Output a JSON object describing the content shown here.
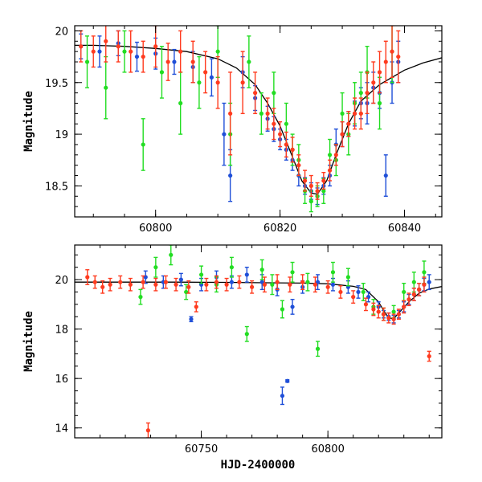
{
  "chart_data": [
    {
      "type": "scatter",
      "panel": "top",
      "ylabel": "Magnitude",
      "xlim": [
        60787,
        60846
      ],
      "ylim": [
        20.05,
        18.2
      ],
      "y_inverted": true,
      "xticks": [
        60800,
        60820,
        60840
      ],
      "xtick_labels": [
        "60800",
        "60820",
        "60840"
      ],
      "yticks": [
        18.5,
        19,
        19.5,
        20
      ],
      "ytick_labels": [
        "18.5",
        "19",
        "19.5",
        "20"
      ],
      "model_curve": {
        "x": [
          60787,
          60790,
          60795,
          60800,
          60805,
          60810,
          60813,
          60816,
          60818,
          60820,
          60822,
          60823.5,
          60825,
          60826,
          60827.5,
          60829,
          60831,
          60833,
          60836,
          60840,
          60843,
          60846
        ],
        "y": [
          19.86,
          19.86,
          19.85,
          19.83,
          19.8,
          19.73,
          19.64,
          19.48,
          19.3,
          19.08,
          18.78,
          18.55,
          18.43,
          18.42,
          18.55,
          18.8,
          19.1,
          19.32,
          19.48,
          19.62,
          19.69,
          19.74
        ]
      },
      "series": [
        {
          "color": "#1f4fd8",
          "x": [
            60788,
            60791,
            60794,
            60797,
            60800,
            60803,
            60806,
            60809,
            60811,
            60812,
            60814,
            60816,
            60818,
            60819,
            60820,
            60821,
            60822,
            60823,
            60824,
            60825,
            60826,
            60827,
            60828,
            60829,
            60830,
            60831,
            60832,
            60833,
            60834,
            60835,
            60836,
            60837,
            60838,
            60839
          ],
          "y": [
            19.85,
            19.8,
            19.88,
            19.75,
            19.78,
            19.7,
            19.65,
            19.55,
            19.0,
            18.6,
            19.6,
            19.35,
            19.15,
            19.05,
            18.95,
            18.85,
            18.75,
            18.6,
            18.5,
            18.45,
            18.4,
            18.5,
            18.6,
            18.9,
            19.0,
            19.1,
            19.2,
            19.3,
            19.3,
            19.45,
            19.4,
            18.6,
            19.5,
            19.7
          ],
          "err": [
            0.12,
            0.15,
            0.12,
            0.14,
            0.15,
            0.12,
            0.15,
            0.18,
            0.3,
            0.25,
            0.15,
            0.12,
            0.12,
            0.12,
            0.1,
            0.1,
            0.1,
            0.1,
            0.08,
            0.08,
            0.08,
            0.08,
            0.1,
            0.15,
            0.12,
            0.12,
            0.12,
            0.15,
            0.2,
            0.15,
            0.15,
            0.2,
            0.2,
            0.2
          ]
        },
        {
          "color": "#22dd22",
          "x": [
            60789,
            60792,
            60795,
            60798,
            60801,
            60804,
            60807,
            60810,
            60812,
            60815,
            60817,
            60819,
            60821,
            60822,
            60823,
            60824,
            60825,
            60826,
            60827,
            60828,
            60829,
            60830,
            60831,
            60832,
            60833,
            60834,
            60836,
            60838
          ],
          "y": [
            19.7,
            19.45,
            19.8,
            18.9,
            19.6,
            19.3,
            19.5,
            19.8,
            19.0,
            19.7,
            19.2,
            19.4,
            19.1,
            18.85,
            18.75,
            18.45,
            18.35,
            18.4,
            18.45,
            18.8,
            18.75,
            19.2,
            19.0,
            19.3,
            19.4,
            19.6,
            19.3,
            19.8
          ],
          "err": [
            0.25,
            0.3,
            0.2,
            0.25,
            0.25,
            0.3,
            0.25,
            0.25,
            0.3,
            0.25,
            0.2,
            0.2,
            0.2,
            0.15,
            0.15,
            0.12,
            0.1,
            0.1,
            0.12,
            0.15,
            0.15,
            0.2,
            0.2,
            0.2,
            0.2,
            0.25,
            0.25,
            0.3
          ]
        },
        {
          "color": "#ff3b1f",
          "x": [
            60788,
            60790,
            60792,
            60794,
            60796,
            60798,
            60800,
            60802,
            60804,
            60806,
            60808,
            60810,
            60812,
            60814,
            60816,
            60818,
            60819,
            60820,
            60821,
            60822,
            60823,
            60824,
            60825,
            60826,
            60827,
            60828,
            60829,
            60830,
            60831,
            60832,
            60833,
            60834,
            60835,
            60836,
            60837,
            60838,
            60839
          ],
          "y": [
            19.85,
            19.8,
            19.9,
            19.85,
            19.8,
            19.75,
            19.85,
            19.7,
            19.8,
            19.7,
            19.6,
            19.5,
            19.2,
            19.5,
            19.4,
            19.2,
            19.1,
            19.0,
            18.9,
            18.85,
            18.7,
            18.55,
            18.5,
            18.45,
            18.55,
            18.65,
            18.8,
            19.0,
            19.1,
            19.2,
            19.2,
            19.4,
            19.5,
            19.6,
            19.7,
            19.8,
            19.75
          ],
          "err": [
            0.15,
            0.15,
            0.2,
            0.15,
            0.2,
            0.15,
            0.2,
            0.18,
            0.2,
            0.2,
            0.2,
            0.25,
            0.4,
            0.3,
            0.2,
            0.15,
            0.15,
            0.12,
            0.12,
            0.12,
            0.1,
            0.1,
            0.1,
            0.08,
            0.08,
            0.1,
            0.1,
            0.12,
            0.12,
            0.15,
            0.15,
            0.2,
            0.2,
            0.2,
            0.2,
            0.25,
            0.25
          ]
        }
      ]
    },
    {
      "type": "scatter",
      "panel": "bottom",
      "ylabel": "Magnitude",
      "xlabel": "HJD-2400000",
      "xlim": [
        60700,
        60845
      ],
      "ylim": [
        21.4,
        13.6
      ],
      "y_inverted": true,
      "xticks": [
        60750,
        60800
      ],
      "xtick_labels": [
        "60750",
        "60800"
      ],
      "yticks": [
        14,
        16,
        18,
        20
      ],
      "ytick_labels": [
        "14",
        "16",
        "18",
        "20"
      ],
      "model_curve": {
        "x": [
          60700,
          60720,
          60740,
          60760,
          60780,
          60790,
          60800,
          60810,
          60815,
          60820,
          60822,
          60824,
          60826,
          60828,
          60832,
          60836,
          60840,
          60845
        ],
        "y": [
          19.9,
          19.9,
          19.9,
          19.89,
          19.87,
          19.86,
          19.83,
          19.73,
          19.6,
          19.1,
          18.75,
          18.45,
          18.42,
          18.65,
          19.1,
          19.45,
          19.62,
          19.72
        ]
      },
      "series": [
        {
          "color": "#1f4fd8",
          "x": [
            60728,
            60735,
            60742,
            60746,
            60750,
            60756,
            60762,
            60768,
            60774,
            60780,
            60782,
            60784,
            60786,
            60790,
            60796,
            60802,
            60808,
            60812,
            60816,
            60820,
            60822,
            60824,
            60826,
            60828,
            60830,
            60832,
            60834,
            60836,
            60838,
            60840
          ],
          "y": [
            20.1,
            19.9,
            20.0,
            18.4,
            19.8,
            20.1,
            19.9,
            20.2,
            19.9,
            19.6,
            15.3,
            15.9,
            18.9,
            19.7,
            19.9,
            19.8,
            19.7,
            19.5,
            19.3,
            18.9,
            18.6,
            18.5,
            18.4,
            18.6,
            18.9,
            19.2,
            19.4,
            19.6,
            19.8,
            19.9
          ],
          "err": [
            0.25,
            0.25,
            0.25,
            0.1,
            0.25,
            0.25,
            0.25,
            0.3,
            0.3,
            0.25,
            0.35,
            0.05,
            0.3,
            0.25,
            0.3,
            0.25,
            0.25,
            0.25,
            0.2,
            0.2,
            0.15,
            0.15,
            0.15,
            0.15,
            0.2,
            0.2,
            0.25,
            0.25,
            0.25,
            0.3
          ]
        },
        {
          "color": "#22dd22",
          "x": [
            60726,
            60732,
            60738,
            60744,
            60750,
            60756,
            60762,
            60768,
            60774,
            60778,
            60782,
            60786,
            60792,
            60796,
            60802,
            60808,
            60814,
            60818,
            60822,
            60826,
            60830,
            60834,
            60838
          ],
          "y": [
            19.3,
            20.5,
            21.0,
            19.5,
            20.2,
            19.8,
            20.5,
            17.8,
            20.4,
            19.8,
            18.8,
            20.3,
            19.9,
            17.2,
            20.3,
            20.1,
            19.5,
            18.9,
            18.6,
            18.7,
            19.5,
            19.9,
            20.3
          ],
          "err": [
            0.3,
            0.4,
            0.4,
            0.3,
            0.35,
            0.3,
            0.4,
            0.3,
            0.4,
            0.4,
            0.35,
            0.4,
            0.35,
            0.3,
            0.4,
            0.35,
            0.35,
            0.3,
            0.25,
            0.25,
            0.35,
            0.4,
            0.45
          ]
        },
        {
          "color": "#ff3b1f",
          "x": [
            60705,
            60708,
            60711,
            60714,
            60718,
            60722,
            60727,
            60729,
            60732,
            60736,
            60740,
            60745,
            60748,
            60752,
            60756,
            60760,
            60765,
            60770,
            60775,
            60780,
            60785,
            60790,
            60795,
            60800,
            60805,
            60810,
            60815,
            60818,
            60820,
            60822,
            60824,
            60826,
            60828,
            60830,
            60832,
            60834,
            60836,
            60838,
            60840
          ],
          "y": [
            20.1,
            19.9,
            19.7,
            19.8,
            19.9,
            19.8,
            19.9,
            13.9,
            19.8,
            19.9,
            19.8,
            19.7,
            18.9,
            19.8,
            19.9,
            19.8,
            19.9,
            19.7,
            19.8,
            19.9,
            19.8,
            19.9,
            19.8,
            19.7,
            19.5,
            19.3,
            19.0,
            18.8,
            18.7,
            18.6,
            18.45,
            18.4,
            18.6,
            18.9,
            19.2,
            19.4,
            19.6,
            19.8,
            16.9
          ],
          "err": [
            0.3,
            0.25,
            0.25,
            0.25,
            0.25,
            0.25,
            0.25,
            0.3,
            0.25,
            0.25,
            0.25,
            0.25,
            0.2,
            0.25,
            0.25,
            0.25,
            0.25,
            0.25,
            0.3,
            0.3,
            0.3,
            0.3,
            0.3,
            0.25,
            0.25,
            0.25,
            0.25,
            0.25,
            0.25,
            0.25,
            0.2,
            0.2,
            0.2,
            0.25,
            0.25,
            0.25,
            0.25,
            0.3,
            0.2
          ]
        }
      ]
    }
  ]
}
